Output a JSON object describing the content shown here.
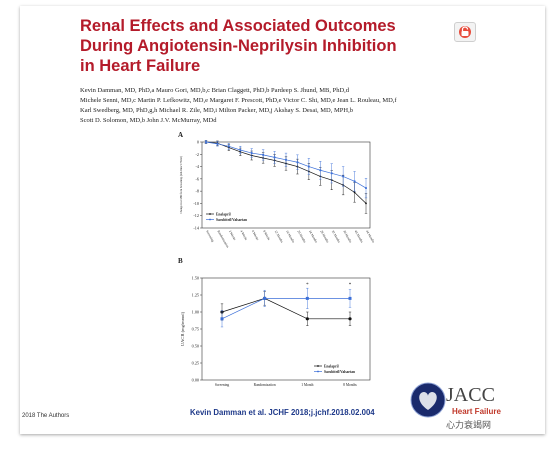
{
  "slide": {
    "title_lines": [
      "Renal Effects and Associated Outcomes",
      "During Angiotensin-Neprilysin Inhibition",
      "in Heart Failure"
    ],
    "author_lines": [
      "Kevin Damman, MD, PhD,a Mauro Gori, MD,b,c Brian Claggett, PhD,b Pardeep S. Jhund, MB, PhD,d",
      "Michele Senni, MD,c Martin P. Lefkowitz, MD,e Margaret F. Prescott, PhD,e Victor C. Shi, MD,e Jean L. Rouleau, MD,f",
      "Karl Swedberg, MD, PhD,g,h Michael R. Zile, MD,i Milton Packer, MD,j Akshay S. Desai, MD, MPH,b",
      "Scott D. Solomon, MD,b John J.V. McMurray, MDd"
    ],
    "citation": "Kevin Damman et al. JCHF 2018;j.jchf.2018.02.004",
    "copyright": "2018 The Authors",
    "logo_text": "JACC",
    "logo_subtitle": "Heart Failure",
    "watermark": "心力衰竭网"
  },
  "colors": {
    "title": "#b41b2a",
    "enalapril": "#111111",
    "sacubitril": "#3b6fd8",
    "citation": "#1f3a8a"
  },
  "chart_data": [
    {
      "panel": "A",
      "type": "line",
      "ylabel": "Change in eGFR from Screening (mL/min/1.73m2)",
      "ylim": [
        -14,
        0
      ],
      "yticks": [
        0,
        -2,
        -4,
        -6,
        -8,
        -10,
        -12,
        -14
      ],
      "categories": [
        "Screening",
        "Randomization",
        "2 Weeks",
        "4 Weeks",
        "6 Weeks",
        "8 Weeks",
        "12 Months",
        "16 Months",
        "20 Months",
        "24 Months",
        "28 Months",
        "32 Months",
        "36 Months",
        "40 Months",
        "44 Months"
      ],
      "series": [
        {
          "name": "Enalapril",
          "values": [
            0,
            -0.2,
            -0.9,
            -1.6,
            -2.2,
            -2.6,
            -3.0,
            -3.5,
            -4.0,
            -4.8,
            -5.6,
            -6.2,
            -7.0,
            -8.2,
            -10.0
          ]
        },
        {
          "name": "Sacubitril/Valsartan",
          "values": [
            0,
            -0.3,
            -0.7,
            -1.3,
            -1.8,
            -2.1,
            -2.5,
            -2.9,
            -3.3,
            -4.0,
            -4.6,
            -5.1,
            -5.6,
            -6.4,
            -7.5
          ]
        }
      ],
      "legend": "bottom-left"
    },
    {
      "panel": "B",
      "type": "line",
      "ylabel": "UACR (mg/mmol)",
      "ylim": [
        0,
        1.5
      ],
      "yticks": [
        0,
        0.25,
        0.5,
        0.75,
        1.0,
        1.25,
        1.5
      ],
      "ytick_labels": [
        "0.00",
        "0.25",
        "0.50",
        "0.75",
        "1.00",
        "1.25",
        "1.50"
      ],
      "categories": [
        "Screening",
        "Randomization",
        "1 Month",
        "8 Months"
      ],
      "series": [
        {
          "name": "Enalapril",
          "values": [
            1.0,
            1.2,
            0.9,
            0.9
          ],
          "err": [
            0.12,
            0.1,
            0.1,
            0.1
          ]
        },
        {
          "name": "Sacubitril/Valsartan",
          "values": [
            0.9,
            1.2,
            1.2,
            1.2
          ],
          "err": [
            0.12,
            0.12,
            0.15,
            0.13
          ]
        }
      ],
      "annotations": [
        "*",
        "*"
      ],
      "legend": "bottom-right"
    }
  ]
}
